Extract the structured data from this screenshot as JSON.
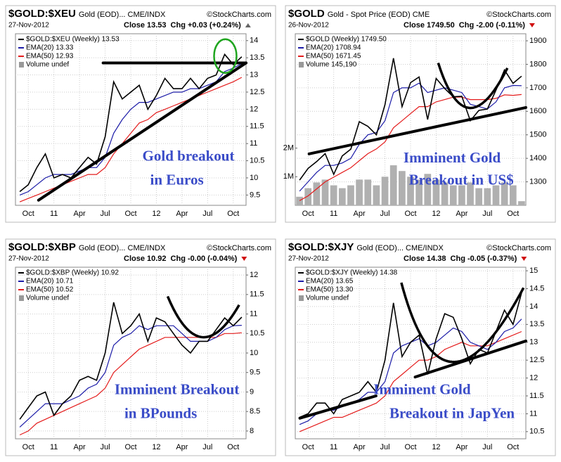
{
  "chart_data": [
    {
      "type": "line",
      "title": "$GOLD:$XEU",
      "subtitle": "Gold (EOD)... CME/INDX",
      "source": "©StockCharts.com",
      "date": "27-Nov-2012",
      "close_label": "Close 13.53",
      "change_label": "Chg +0.03 (+0.24%)",
      "legend_note": "Volume undef",
      "categories": [
        null,
        "Oct",
        null,
        null,
        "11",
        null,
        null,
        "Apr",
        null,
        null,
        "Jul",
        null,
        null,
        "Oct",
        null,
        null,
        "12",
        null,
        null,
        "Apr",
        null,
        null,
        "Jul",
        null,
        null,
        "Oct",
        null
      ],
      "series": [
        {
          "name": "$GOLD:$XEU (Weekly) 13.53",
          "color": "#000000",
          "values": [
            9.6,
            9.8,
            10.3,
            10.7,
            10.0,
            10.1,
            10.0,
            10.3,
            10.6,
            10.4,
            11.2,
            12.8,
            12.3,
            12.5,
            12.7,
            12.0,
            12.4,
            12.9,
            12.6,
            12.6,
            12.9,
            12.6,
            12.9,
            13.0,
            13.6,
            13.3,
            13.53
          ]
        },
        {
          "name": "EMA(20) 13.33",
          "color": "#1c1ca8",
          "values": [
            9.5,
            9.6,
            9.8,
            10.0,
            10.1,
            10.1,
            10.1,
            10.2,
            10.3,
            10.3,
            10.6,
            11.3,
            11.7,
            12.0,
            12.2,
            12.2,
            12.3,
            12.4,
            12.5,
            12.5,
            12.6,
            12.6,
            12.7,
            12.8,
            13.1,
            13.2,
            13.33
          ]
        },
        {
          "name": "EMA(50) 12.93",
          "color": "#e41c1c",
          "values": [
            9.3,
            9.4,
            9.5,
            9.6,
            9.7,
            9.8,
            9.9,
            10.0,
            10.1,
            10.1,
            10.3,
            10.7,
            11.0,
            11.3,
            11.6,
            11.7,
            11.9,
            12.0,
            12.1,
            12.2,
            12.3,
            12.4,
            12.5,
            12.6,
            12.7,
            12.8,
            12.93
          ]
        }
      ],
      "ylim": [
        9.2,
        14.2
      ],
      "yticks": [
        9.5,
        10.0,
        10.5,
        11.0,
        11.5,
        12.0,
        12.5,
        13.0,
        13.5,
        14.0
      ],
      "grid": true,
      "annotations": [
        "Gold breakout",
        "in Euros"
      ]
    },
    {
      "type": "line",
      "title": "$GOLD",
      "subtitle": "Gold - Spot Price (EOD) CME",
      "source": "©StockCharts.com",
      "date": "26-Nov-2012",
      "close_label": "Close 1749.50",
      "change_label": "Chg -2.00 (-0.11%)",
      "legend_note": "Volume 145,190",
      "categories": [
        null,
        "Oct",
        null,
        null,
        "11",
        null,
        null,
        "Apr",
        null,
        null,
        "Jul",
        null,
        null,
        "Oct",
        null,
        null,
        "12",
        null,
        null,
        "Apr",
        null,
        null,
        "Jul",
        null,
        null,
        "Oct",
        null
      ],
      "series": [
        {
          "name": "$GOLD (Weekly) 1749.50",
          "color": "#000000",
          "values": [
            1307,
            1357,
            1386,
            1420,
            1332,
            1410,
            1439,
            1556,
            1536,
            1500,
            1628,
            1826,
            1620,
            1722,
            1746,
            1565,
            1740,
            1697,
            1662,
            1664,
            1560,
            1604,
            1610,
            1690,
            1776,
            1719,
            1749.5
          ]
        },
        {
          "name": "EMA(20) 1708.94",
          "color": "#1c1ca8",
          "values": [
            1260,
            1300,
            1340,
            1370,
            1370,
            1380,
            1400,
            1460,
            1500,
            1510,
            1560,
            1680,
            1700,
            1700,
            1720,
            1680,
            1690,
            1700,
            1690,
            1680,
            1630,
            1620,
            1610,
            1640,
            1700,
            1710,
            1708.94
          ]
        },
        {
          "name": "EMA(50) 1671.45",
          "color": "#e41c1c",
          "values": [
            1220,
            1240,
            1270,
            1300,
            1320,
            1340,
            1360,
            1390,
            1420,
            1440,
            1470,
            1530,
            1560,
            1590,
            1620,
            1620,
            1640,
            1650,
            1660,
            1660,
            1650,
            1650,
            1650,
            1655,
            1670,
            1668,
            1671.45
          ]
        }
      ],
      "volume": {
        "color": "#b0b0b0",
        "values": [
          300000,
          600000,
          800000,
          900000,
          700000,
          600000,
          700000,
          900000,
          900000,
          700000,
          1000000,
          1400000,
          1200000,
          1000000,
          900000,
          1100000,
          900000,
          800000,
          700000,
          700000,
          800000,
          600000,
          600000,
          700000,
          800000,
          700000,
          145190
        ],
        "vlim": [
          0,
          6000000
        ],
        "vticks": [
          {
            "value": 1000000,
            "label": "1M"
          },
          {
            "value": 2000000,
            "label": "2M"
          }
        ]
      },
      "ylim": [
        1200,
        1930
      ],
      "yticks": [
        1300,
        1400,
        1500,
        1600,
        1700,
        1800,
        1900
      ],
      "grid": true,
      "annotations": [
        "Imminent Gold",
        "Breakout in US$"
      ]
    },
    {
      "type": "line",
      "title": "$GOLD:$XBP",
      "subtitle": "Gold (EOD)... CME/INDX",
      "source": "©StockCharts.com",
      "date": "27-Nov-2012",
      "close_label": "Close 10.92",
      "change_label": "Chg -0.00 (-0.04%)",
      "legend_note": "Volume undef",
      "categories": [
        null,
        "Oct",
        null,
        null,
        "11",
        null,
        null,
        "Apr",
        null,
        null,
        "Jul",
        null,
        null,
        "Oct",
        null,
        null,
        "12",
        null,
        null,
        "Apr",
        null,
        null,
        "Jul",
        null,
        null,
        "Oct",
        null
      ],
      "series": [
        {
          "name": "$GOLD:$XBP (Weekly) 10.92",
          "color": "#000000",
          "values": [
            8.3,
            8.6,
            8.9,
            9.0,
            8.4,
            8.7,
            8.9,
            9.3,
            9.4,
            9.3,
            10.0,
            11.3,
            10.5,
            10.7,
            11.0,
            10.3,
            10.9,
            10.8,
            10.5,
            10.2,
            10.0,
            10.3,
            10.3,
            10.6,
            10.9,
            10.7,
            10.92
          ]
        },
        {
          "name": "EMA(20) 10.71",
          "color": "#1c1ca8",
          "values": [
            8.1,
            8.3,
            8.5,
            8.7,
            8.7,
            8.7,
            8.8,
            8.9,
            9.1,
            9.2,
            9.5,
            10.2,
            10.4,
            10.5,
            10.7,
            10.6,
            10.7,
            10.7,
            10.7,
            10.5,
            10.3,
            10.3,
            10.3,
            10.4,
            10.6,
            10.7,
            10.71
          ]
        },
        {
          "name": "EMA(50) 10.52",
          "color": "#e41c1c",
          "values": [
            7.9,
            8.0,
            8.2,
            8.3,
            8.4,
            8.5,
            8.6,
            8.7,
            8.8,
            8.9,
            9.1,
            9.5,
            9.7,
            9.9,
            10.1,
            10.2,
            10.3,
            10.4,
            10.4,
            10.4,
            10.4,
            10.4,
            10.4,
            10.4,
            10.5,
            10.5,
            10.52
          ]
        }
      ],
      "ylim": [
        7.8,
        12.2
      ],
      "yticks": [
        8.0,
        8.5,
        9.0,
        9.5,
        10.0,
        10.5,
        11.0,
        11.5,
        12.0
      ],
      "grid": true,
      "annotations": [
        "Imminent Breakout",
        "in BPounds"
      ]
    },
    {
      "type": "line",
      "title": "$GOLD:$XJY",
      "subtitle": "Gold (EOD)... CME/INDX",
      "source": "©StockCharts.com",
      "date": "27-Nov-2012",
      "close_label": "Close 14.38",
      "change_label": "Chg -0.05 (-0.37%)",
      "legend_note": "Volume undef",
      "categories": [
        null,
        "Oct",
        null,
        null,
        "11",
        null,
        null,
        "Apr",
        null,
        null,
        "Jul",
        null,
        null,
        "Oct",
        null,
        null,
        "12",
        null,
        null,
        "Apr",
        null,
        null,
        "Jul",
        null,
        null,
        "Oct",
        null
      ],
      "series": [
        {
          "name": "$GOLD:$XJY (Weekly) 14.38",
          "color": "#000000",
          "values": [
            10.9,
            11.0,
            11.3,
            11.3,
            11.0,
            11.4,
            11.5,
            11.6,
            11.9,
            11.6,
            12.5,
            14.1,
            12.6,
            13.0,
            13.2,
            12.1,
            13.1,
            13.8,
            13.7,
            13.1,
            12.4,
            12.8,
            12.7,
            13.3,
            13.9,
            13.5,
            14.38
          ]
        },
        {
          "name": "EMA(20) 13.65",
          "color": "#1c1ca8",
          "values": [
            10.7,
            10.8,
            11.0,
            11.1,
            11.1,
            11.2,
            11.3,
            11.4,
            11.6,
            11.6,
            11.9,
            12.7,
            12.9,
            13.0,
            13.1,
            12.9,
            13.0,
            13.2,
            13.4,
            13.3,
            13.0,
            12.9,
            12.8,
            13.0,
            13.3,
            13.4,
            13.65
          ]
        },
        {
          "name": "EMA(50) 13.30",
          "color": "#e41c1c",
          "values": [
            10.5,
            10.6,
            10.7,
            10.8,
            10.9,
            10.9,
            11.0,
            11.1,
            11.2,
            11.3,
            11.5,
            11.9,
            12.1,
            12.3,
            12.5,
            12.5,
            12.6,
            12.8,
            12.9,
            13.0,
            12.9,
            12.9,
            12.9,
            13.0,
            13.1,
            13.2,
            13.3
          ]
        }
      ],
      "ylim": [
        10.3,
        15.1
      ],
      "yticks": [
        10.5,
        11.0,
        11.5,
        12.0,
        12.5,
        13.0,
        13.5,
        14.0,
        14.5,
        15.0
      ],
      "grid": true,
      "annotations": [
        "Imminent Gold",
        "Breakout in JapYen"
      ]
    }
  ]
}
